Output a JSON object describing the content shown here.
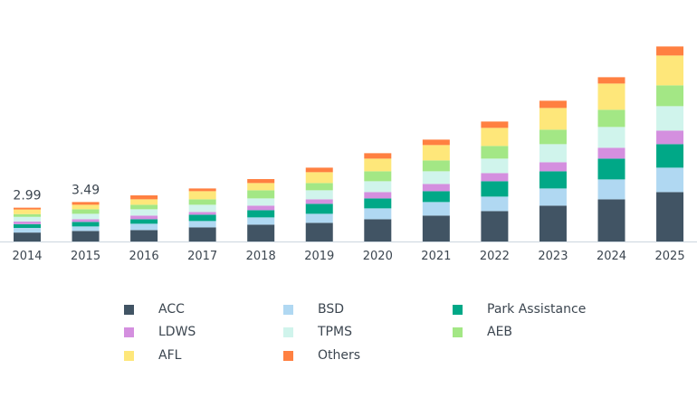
{
  "chart_data": {
    "type": "bar",
    "stacked": true,
    "title": "",
    "xlabel": "",
    "ylabel": "",
    "grid": false,
    "legend_placement": "bottom",
    "categories": [
      "2014",
      "2015",
      "2016",
      "2017",
      "2018",
      "2019",
      "2020",
      "2021",
      "2022",
      "2023",
      "2024",
      "2025"
    ],
    "data_labels": [
      {
        "category": "2014",
        "text": "2.99"
      },
      {
        "category": "2015",
        "text": "3.49"
      }
    ],
    "series": [
      {
        "name": "ACC",
        "color": "#415464",
        "values": [
          0.79,
          0.93,
          1.01,
          1.25,
          1.49,
          1.65,
          1.97,
          2.29,
          2.69,
          3.17,
          3.73,
          4.37
        ]
      },
      {
        "name": "BSD",
        "color": "#b0d8f2",
        "values": [
          0.41,
          0.4,
          0.56,
          0.56,
          0.64,
          0.8,
          0.96,
          1.2,
          1.28,
          1.52,
          1.76,
          2.16
        ]
      },
      {
        "name": "Park Assistance",
        "color": "#00a887",
        "values": [
          0.33,
          0.4,
          0.4,
          0.56,
          0.64,
          0.88,
          0.88,
          0.96,
          1.36,
          1.52,
          1.84,
          2.08
        ]
      },
      {
        "name": "LDWS",
        "color": "#d48fdf",
        "values": [
          0.24,
          0.24,
          0.32,
          0.24,
          0.4,
          0.4,
          0.56,
          0.64,
          0.72,
          0.8,
          0.96,
          1.2
        ]
      },
      {
        "name": "TPMS",
        "color": "#d0f4ec",
        "values": [
          0.41,
          0.48,
          0.56,
          0.64,
          0.64,
          0.8,
          0.96,
          1.12,
          1.28,
          1.6,
          1.84,
          2.16
        ]
      },
      {
        "name": "AEB",
        "color": "#a3e785",
        "values": [
          0.24,
          0.4,
          0.4,
          0.48,
          0.72,
          0.64,
          0.88,
          0.96,
          1.12,
          1.28,
          1.52,
          1.84
        ]
      },
      {
        "name": "AFL",
        "color": "#fee77a",
        "values": [
          0.41,
          0.4,
          0.48,
          0.72,
          0.64,
          0.96,
          1.12,
          1.36,
          1.6,
          1.92,
          2.32,
          2.64
        ]
      },
      {
        "name": "Others",
        "color": "#ff8041",
        "values": [
          0.16,
          0.24,
          0.35,
          0.24,
          0.35,
          0.4,
          0.48,
          0.48,
          0.56,
          0.64,
          0.56,
          0.8
        ]
      }
    ]
  }
}
